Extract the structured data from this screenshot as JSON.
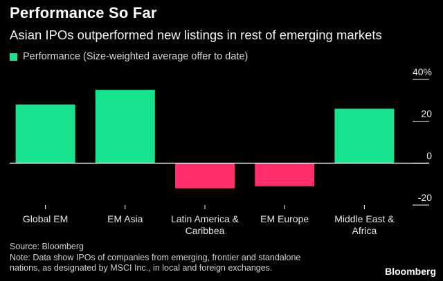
{
  "header": {
    "title": "Performance So Far",
    "subtitle": "Asian IPOs outperformed new listings in rest of emerging markets"
  },
  "legend": {
    "label": "Performance (Size-weighted average offer to date)"
  },
  "footer": {
    "source": "Source: Bloomberg",
    "note_line1": "Note: Data show IPOs of companies from emerging, frontier and standalone",
    "note_line2": "nations, as designated by MSCI Inc., in local and foreign exchanges."
  },
  "brand": "Bloomberg",
  "colors": {
    "positive": "#17e38f",
    "negative": "#ff2d6a",
    "axis": "#ffffff",
    "grid": "#ffffff"
  },
  "chart_data": {
    "type": "bar",
    "title": "Performance So Far",
    "ylabel": "",
    "xlabel": "",
    "ylim": [
      -20,
      40
    ],
    "yticks": [
      40,
      20,
      0,
      -20
    ],
    "ytick_labels": [
      "40%",
      "20",
      "0",
      "-20"
    ],
    "categories": [
      [
        "Global EM"
      ],
      [
        "EM Asia"
      ],
      [
        "Latin America &",
        "Caribbea"
      ],
      [
        "EM Europe"
      ],
      [
        "Middle East &",
        "Africa"
      ]
    ],
    "series": [
      {
        "name": "Performance (Size-weighted average offer to date)",
        "values": [
          28,
          35,
          -12,
          -11,
          26
        ]
      }
    ]
  }
}
